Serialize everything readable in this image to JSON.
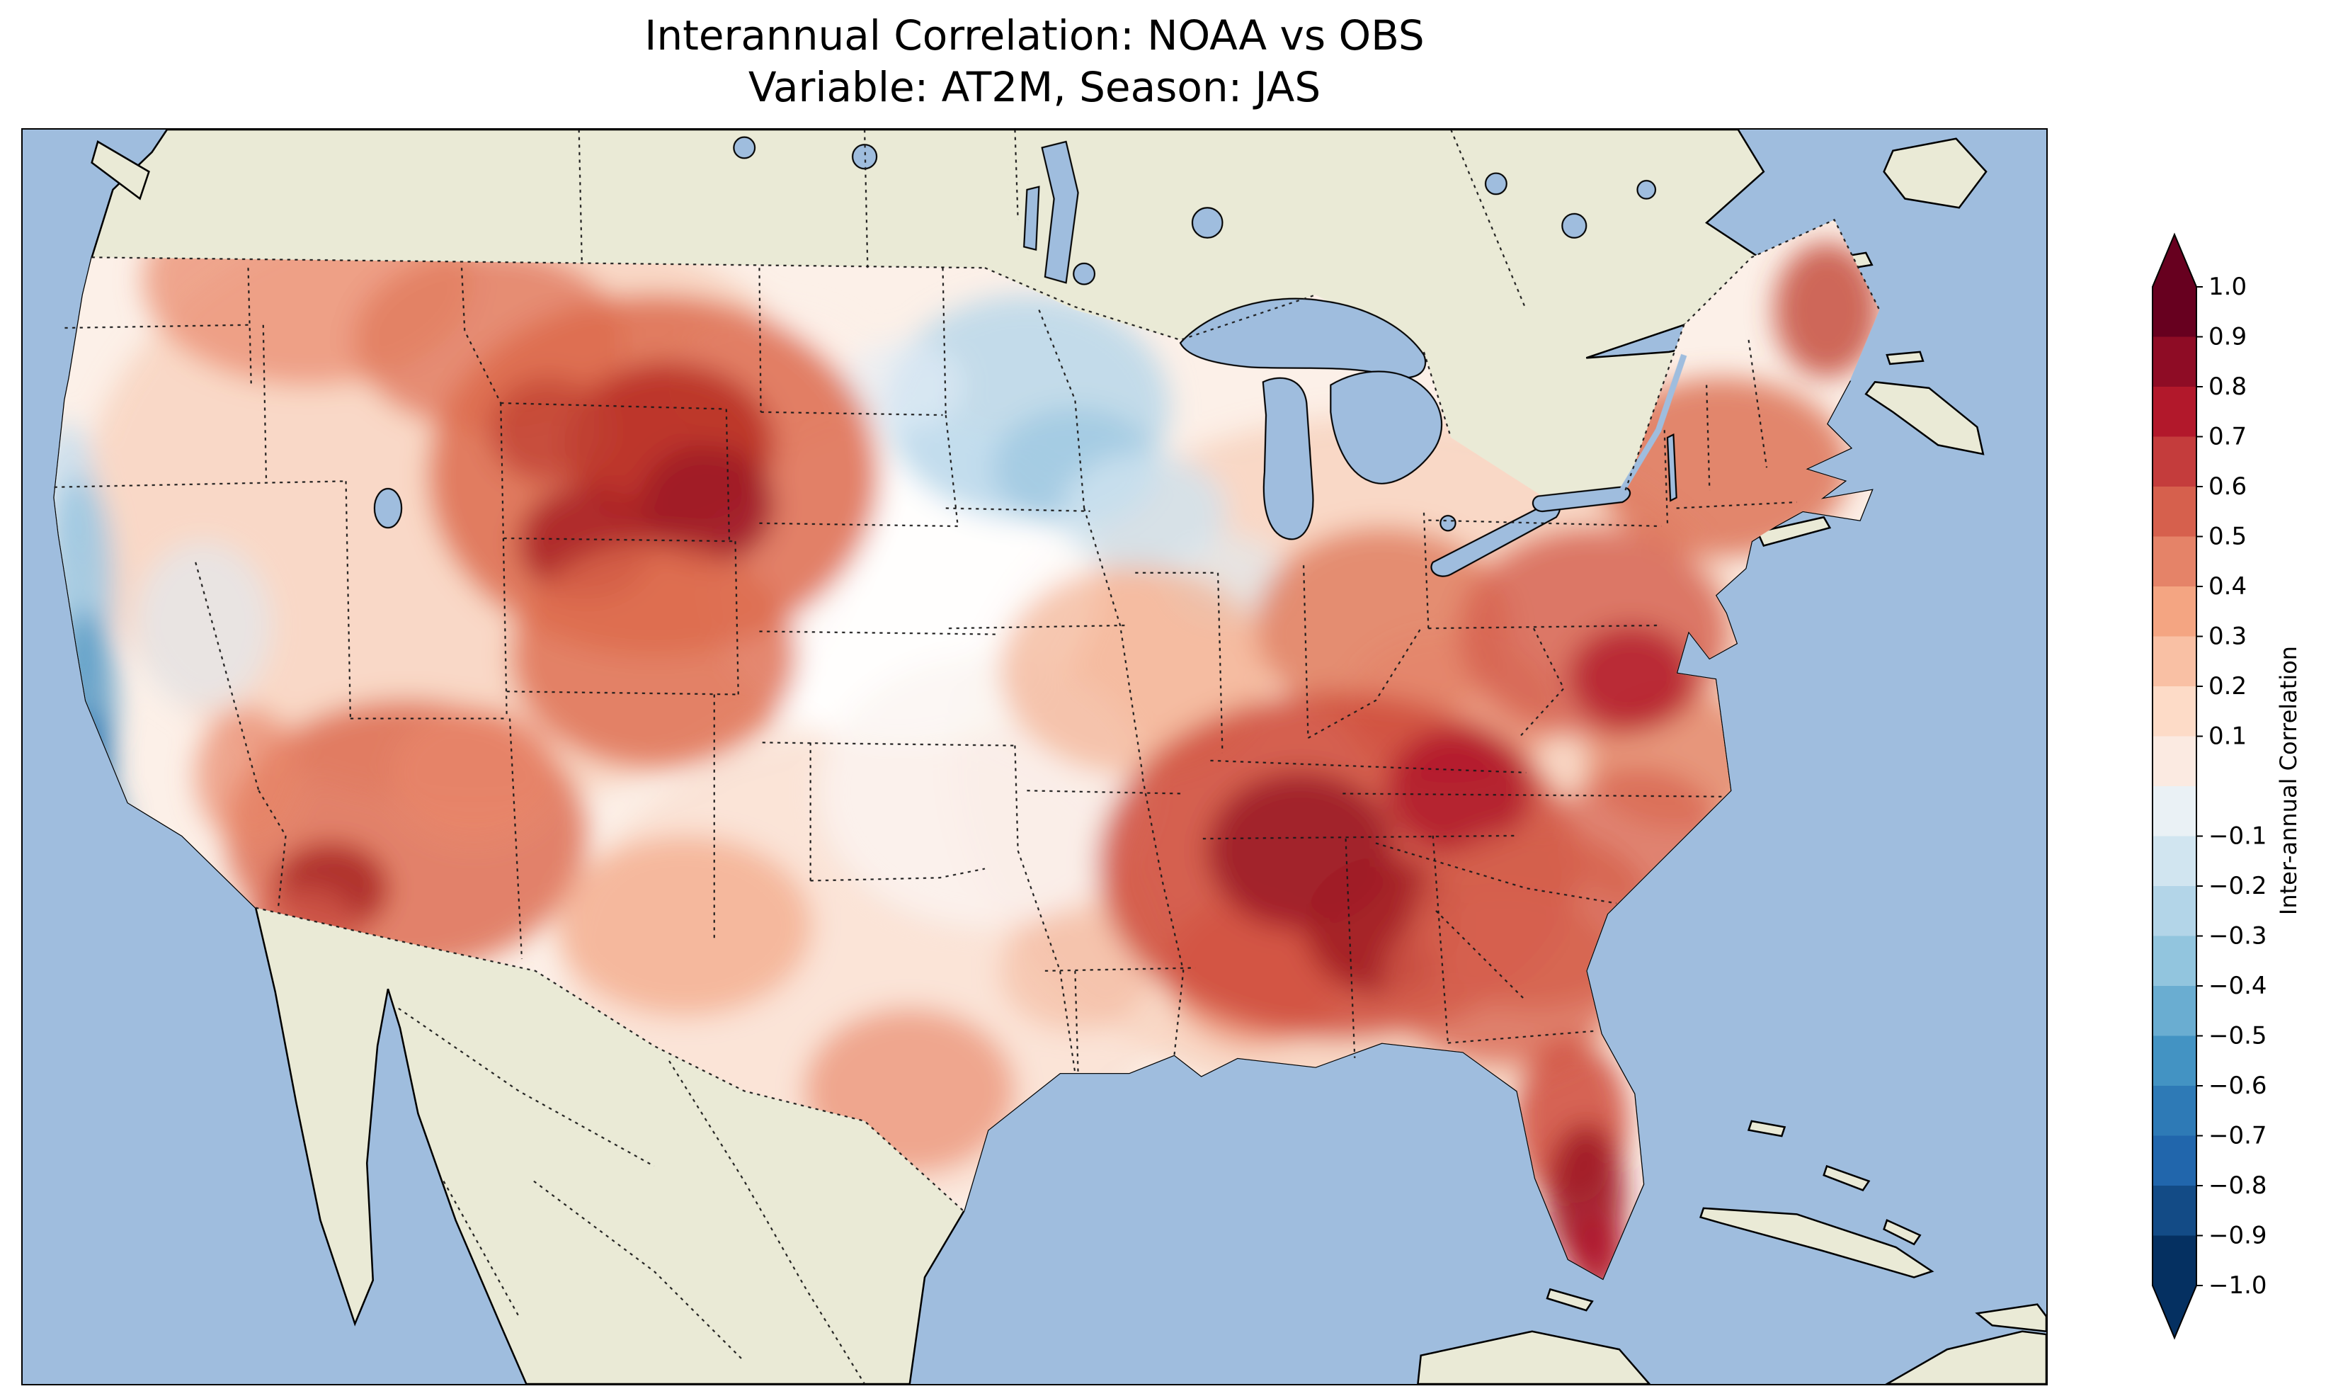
{
  "figure": {
    "title": "Interannual Correlation: NOAA vs OBS",
    "subtitle": "Variable: AT2M, Season: JAS"
  },
  "colorbar": {
    "label": "Inter-annual Correlation",
    "extend_over_color": "#67001f",
    "extend_under_color": "#053061",
    "segments_top_to_bottom": [
      "#67001f",
      "#8e0c25",
      "#b2182b",
      "#c43c3c",
      "#d6604d",
      "#e58368",
      "#f4a582",
      "#f9c0a4",
      "#fddbc7",
      "#fbeae1",
      "#eaf1f5",
      "#d1e5f0",
      "#b3d5e8",
      "#92c5de",
      "#6aadd1",
      "#4393c3",
      "#2e7ab6",
      "#2166ac",
      "#134b86",
      "#053061"
    ],
    "ticks": [
      {
        "value": 1.0,
        "label": "1.0"
      },
      {
        "value": 0.9,
        "label": "0.9"
      },
      {
        "value": 0.8,
        "label": "0.8"
      },
      {
        "value": 0.7,
        "label": "0.7"
      },
      {
        "value": 0.6,
        "label": "0.6"
      },
      {
        "value": 0.5,
        "label": "0.5"
      },
      {
        "value": 0.4,
        "label": "0.4"
      },
      {
        "value": 0.3,
        "label": "0.3"
      },
      {
        "value": 0.2,
        "label": "0.2"
      },
      {
        "value": 0.1,
        "label": "0.1"
      },
      {
        "value": -0.1,
        "label": "−0.1"
      },
      {
        "value": -0.2,
        "label": "−0.2"
      },
      {
        "value": -0.3,
        "label": "−0.3"
      },
      {
        "value": -0.4,
        "label": "−0.4"
      },
      {
        "value": -0.5,
        "label": "−0.5"
      },
      {
        "value": -0.6,
        "label": "−0.6"
      },
      {
        "value": -0.7,
        "label": "−0.7"
      },
      {
        "value": -0.8,
        "label": "−0.8"
      },
      {
        "value": -0.9,
        "label": "−0.9"
      },
      {
        "value": -1.0,
        "label": "−1.0"
      }
    ]
  },
  "map": {
    "colors": {
      "ocean": "#9fbdde",
      "land": "#eaead6",
      "coastline": "#000000",
      "field_background": "#fcf0e8"
    },
    "border_style": "dotted"
  },
  "chart_data": {
    "type": "heatmap",
    "title": "Interannual Correlation: NOAA vs OBS",
    "subtitle": "Variable: AT2M, Season: JAS",
    "colorbar_label": "Inter-annual Correlation",
    "colormap": "RdBu_r",
    "value_range": [
      -1.0,
      1.0
    ],
    "tick_values": [
      1.0,
      0.9,
      0.8,
      0.7,
      0.6,
      0.5,
      0.4,
      0.3,
      0.2,
      0.1,
      -0.1,
      -0.2,
      -0.3,
      -0.4,
      -0.5,
      -0.6,
      -0.7,
      -0.8,
      -0.9,
      -1.0
    ],
    "extend": "both",
    "domain": "Contiguous United States (data only over CONUS; Canada and Mexico unshaded land)",
    "region_values_approx": [
      {
        "region": "Pacific Northwest interior (WA/ID)",
        "correlation": 0.4
      },
      {
        "region": "California coast",
        "correlation": -0.5
      },
      {
        "region": "Sierra Nevada / western Nevada",
        "correlation": -0.1
      },
      {
        "region": "Central Rockies (WY/CO/UT)",
        "correlation": 0.7
      },
      {
        "region": "Montana / Northern Rockies",
        "correlation": 0.5
      },
      {
        "region": "Southwest (AZ/NM)",
        "correlation": 0.5
      },
      {
        "region": "Central Plains (NE/KS)",
        "correlation": 0.1
      },
      {
        "region": "Upper Midwest (MN/WI)",
        "correlation": -0.2
      },
      {
        "region": "Texas",
        "correlation": 0.2
      },
      {
        "region": "Lower Mississippi Valley",
        "correlation": 0.3
      },
      {
        "region": "Ohio Valley",
        "correlation": 0.4
      },
      {
        "region": "Southeast (TN/AL/GA/Carolinas)",
        "correlation": 0.8
      },
      {
        "region": "Florida peninsula",
        "correlation": 0.8
      },
      {
        "region": "Mid-Atlantic",
        "correlation": 0.6
      },
      {
        "region": "Northeast (NY/New England)",
        "correlation": 0.6
      }
    ]
  }
}
